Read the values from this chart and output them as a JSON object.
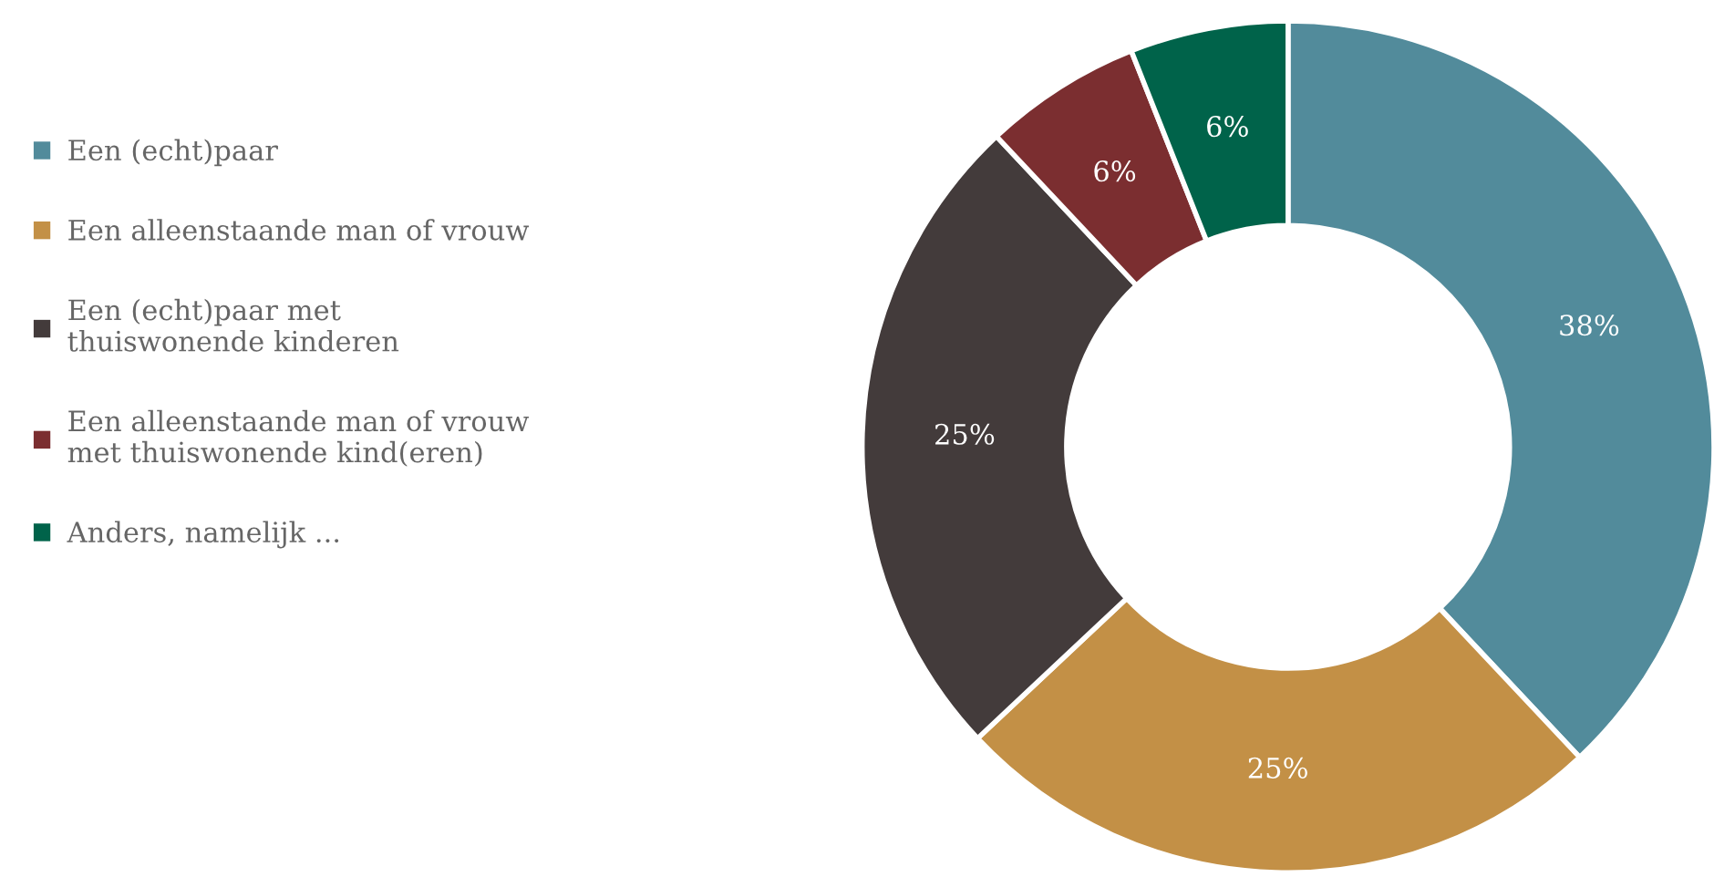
{
  "chart_data": {
    "type": "donut",
    "categories": [
      "Een (echt)paar",
      "Een alleenstaande man of vrouw",
      "Een (echt)paar met\nthuiswonende kinderen",
      "Een alleenstaande man of vrouw\nmet thuiswonende kind(eren)",
      "Anders, namelijk ..."
    ],
    "values": [
      38,
      25,
      25,
      6,
      6
    ],
    "colors": [
      "#528b9b",
      "#c39046",
      "#433b3b",
      "#7b2e30",
      "#00634a"
    ],
    "value_labels": [
      "38%",
      "25%",
      "25%",
      "6%",
      "6%"
    ],
    "legend": "left"
  }
}
